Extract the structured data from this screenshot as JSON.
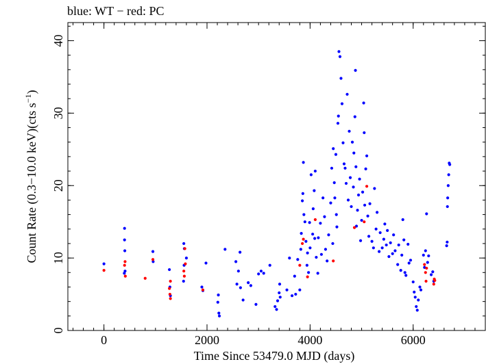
{
  "chart_data": {
    "type": "scatter",
    "title": "blue: WT − red: PC",
    "xlabel": "Time Since 53479.0 MJD (days)",
    "ylabel_main": "Count Rate (0.3−10.0 keV)(cts s",
    "ylabel_sup": "−1",
    "ylabel_close": ")",
    "xlim": [
      -700,
      7400
    ],
    "ylim": [
      0,
      42.5
    ],
    "xticks": [
      0,
      2000,
      4000,
      6000
    ],
    "xtick_labels": [
      "0",
      "2000",
      "4000",
      "6000"
    ],
    "xminor_step": 200,
    "yticks": [
      0,
      10,
      20,
      30,
      40
    ],
    "ytick_labels": [
      "0",
      "10",
      "20",
      "30",
      "40"
    ],
    "yminor_step": 2,
    "colors": {
      "WT": "#0000ff",
      "PC": "#ff0000"
    },
    "series": [
      {
        "name": "WT",
        "color": "#0000ff",
        "points": [
          [
            0,
            9.2
          ],
          [
            400,
            14.1
          ],
          [
            400,
            12.5
          ],
          [
            405,
            11.0
          ],
          [
            410,
            8.2
          ],
          [
            395,
            7.9
          ],
          [
            950,
            10.9
          ],
          [
            955,
            9.5
          ],
          [
            1270,
            8.4
          ],
          [
            1280,
            6.0
          ],
          [
            1290,
            4.8
          ],
          [
            1550,
            12.0
          ],
          [
            1555,
            9.0
          ],
          [
            1560,
            11.3
          ],
          [
            1545,
            6.8
          ],
          [
            1600,
            10.0
          ],
          [
            1900,
            6.0
          ],
          [
            1920,
            5.5
          ],
          [
            1980,
            9.3
          ],
          [
            2220,
            4.9
          ],
          [
            2230,
            2.4
          ],
          [
            2240,
            2.0
          ],
          [
            2210,
            3.9
          ],
          [
            2350,
            11.2
          ],
          [
            2560,
            9.5
          ],
          [
            2580,
            6.4
          ],
          [
            2610,
            8.2
          ],
          [
            2650,
            5.9
          ],
          [
            2640,
            10.8
          ],
          [
            2700,
            4.2
          ],
          [
            2800,
            6.6
          ],
          [
            2850,
            6.2
          ],
          [
            2950,
            3.6
          ],
          [
            3000,
            7.8
          ],
          [
            3050,
            8.2
          ],
          [
            3100,
            7.9
          ],
          [
            3220,
            9.0
          ],
          [
            3320,
            3.3
          ],
          [
            3350,
            2.9
          ],
          [
            3370,
            4.1
          ],
          [
            3400,
            5.2
          ],
          [
            3410,
            6.4
          ],
          [
            3420,
            4.6
          ],
          [
            3550,
            5.6
          ],
          [
            3600,
            10.0
          ],
          [
            3650,
            4.8
          ],
          [
            3700,
            7.5
          ],
          [
            3720,
            5.0
          ],
          [
            3760,
            9.8
          ],
          [
            3800,
            5.6
          ],
          [
            3820,
            11.2
          ],
          [
            3830,
            13.4
          ],
          [
            3850,
            17.9
          ],
          [
            3860,
            18.9
          ],
          [
            3870,
            23.2
          ],
          [
            3880,
            16.0
          ],
          [
            3900,
            15.0
          ],
          [
            3920,
            12.3
          ],
          [
            3940,
            9.0
          ],
          [
            3950,
            10.7
          ],
          [
            3970,
            8.0
          ],
          [
            3990,
            14.9
          ],
          [
            4000,
            11.4
          ],
          [
            4020,
            21.5
          ],
          [
            4050,
            13.3
          ],
          [
            4060,
            16.8
          ],
          [
            4080,
            19.3
          ],
          [
            4090,
            12.7
          ],
          [
            4100,
            22.0
          ],
          [
            4120,
            10.1
          ],
          [
            4150,
            7.9
          ],
          [
            4160,
            12.8
          ],
          [
            4200,
            14.8
          ],
          [
            4220,
            10.5
          ],
          [
            4250,
            18.3
          ],
          [
            4280,
            15.7
          ],
          [
            4300,
            11.2
          ],
          [
            4330,
            9.6
          ],
          [
            4360,
            13.2
          ],
          [
            4400,
            17.6
          ],
          [
            4420,
            22.4
          ],
          [
            4440,
            12.0
          ],
          [
            4450,
            25.1
          ],
          [
            4470,
            20.4
          ],
          [
            4480,
            18.3
          ],
          [
            4500,
            24.3
          ],
          [
            4510,
            16.0
          ],
          [
            4520,
            14.3
          ],
          [
            4540,
            28.6
          ],
          [
            4550,
            29.6
          ],
          [
            4560,
            38.5
          ],
          [
            4580,
            37.8
          ],
          [
            4600,
            34.8
          ],
          [
            4620,
            31.3
          ],
          [
            4640,
            25.9
          ],
          [
            4660,
            23.0
          ],
          [
            4680,
            22.4
          ],
          [
            4700,
            20.3
          ],
          [
            4720,
            32.6
          ],
          [
            4740,
            18.0
          ],
          [
            4760,
            27.5
          ],
          [
            4780,
            21.1
          ],
          [
            4800,
            17.1
          ],
          [
            4820,
            26.0
          ],
          [
            4840,
            19.8
          ],
          [
            4850,
            24.5
          ],
          [
            4870,
            29.5
          ],
          [
            4880,
            35.9
          ],
          [
            4890,
            22.6
          ],
          [
            4900,
            14.4
          ],
          [
            4920,
            16.6
          ],
          [
            4940,
            18.7
          ],
          [
            4960,
            20.9
          ],
          [
            4980,
            12.4
          ],
          [
            5000,
            15.2
          ],
          [
            5020,
            19.1
          ],
          [
            5040,
            31.4
          ],
          [
            5050,
            27.3
          ],
          [
            5060,
            17.3
          ],
          [
            5080,
            22.3
          ],
          [
            5100,
            24.1
          ],
          [
            5120,
            15.8
          ],
          [
            5140,
            13.0
          ],
          [
            5160,
            17.5
          ],
          [
            5200,
            12.3
          ],
          [
            5230,
            11.4
          ],
          [
            5250,
            19.6
          ],
          [
            5280,
            14.0
          ],
          [
            5300,
            16.3
          ],
          [
            5340,
            10.9
          ],
          [
            5360,
            13.5
          ],
          [
            5400,
            11.4
          ],
          [
            5430,
            12.6
          ],
          [
            5450,
            14.7
          ],
          [
            5480,
            11.8
          ],
          [
            5500,
            13.8
          ],
          [
            5530,
            10.2
          ],
          [
            5560,
            12.1
          ],
          [
            5600,
            10.6
          ],
          [
            5620,
            13.2
          ],
          [
            5650,
            11.0
          ],
          [
            5700,
            9.1
          ],
          [
            5720,
            11.8
          ],
          [
            5760,
            8.3
          ],
          [
            5780,
            10.4
          ],
          [
            5800,
            15.3
          ],
          [
            5820,
            12.5
          ],
          [
            5840,
            8.0
          ],
          [
            5860,
            7.6
          ],
          [
            5900,
            11.9
          ],
          [
            5920,
            9.3
          ],
          [
            5950,
            9.7
          ],
          [
            6000,
            6.7
          ],
          [
            6020,
            5.3
          ],
          [
            6040,
            4.6
          ],
          [
            6060,
            3.3
          ],
          [
            6080,
            2.8
          ],
          [
            6100,
            4.2
          ],
          [
            6130,
            6.0
          ],
          [
            6150,
            5.6
          ],
          [
            6200,
            10.4
          ],
          [
            6220,
            8.7
          ],
          [
            6240,
            11.0
          ],
          [
            6260,
            16.1
          ],
          [
            6280,
            9.4
          ],
          [
            6300,
            10.3
          ],
          [
            6350,
            7.7
          ],
          [
            6380,
            8.1
          ],
          [
            6400,
            6.8
          ],
          [
            6650,
            11.7
          ],
          [
            6660,
            12.2
          ],
          [
            6665,
            17.1
          ],
          [
            6670,
            18.3
          ],
          [
            6680,
            20.0
          ],
          [
            6690,
            21.5
          ],
          [
            6700,
            23.1
          ],
          [
            6710,
            22.9
          ]
        ]
      },
      {
        "name": "PC",
        "color": "#ff0000",
        "points": [
          [
            0,
            8.3
          ],
          [
            400,
            9.0
          ],
          [
            410,
            9.5
          ],
          [
            415,
            7.5
          ],
          [
            800,
            7.2
          ],
          [
            950,
            9.8
          ],
          [
            1270,
            5.8
          ],
          [
            1280,
            5.0
          ],
          [
            1290,
            4.4
          ],
          [
            1290,
            6.8
          ],
          [
            1550,
            8.2
          ],
          [
            1560,
            7.5
          ],
          [
            1570,
            11.3
          ],
          [
            1580,
            9.2
          ],
          [
            1920,
            5.6
          ],
          [
            3800,
            9.0
          ],
          [
            3850,
            12.0
          ],
          [
            3870,
            12.6
          ],
          [
            3950,
            7.4
          ],
          [
            4100,
            15.3
          ],
          [
            4450,
            9.6
          ],
          [
            4860,
            14.2
          ],
          [
            5050,
            15.0
          ],
          [
            5100,
            19.9
          ],
          [
            6220,
            9.1
          ],
          [
            6240,
            8.0
          ],
          [
            6250,
            6.8
          ],
          [
            6260,
            8.6
          ],
          [
            6400,
            6.4
          ],
          [
            6410,
            7.1
          ],
          [
            6420,
            6.9
          ]
        ]
      }
    ]
  }
}
